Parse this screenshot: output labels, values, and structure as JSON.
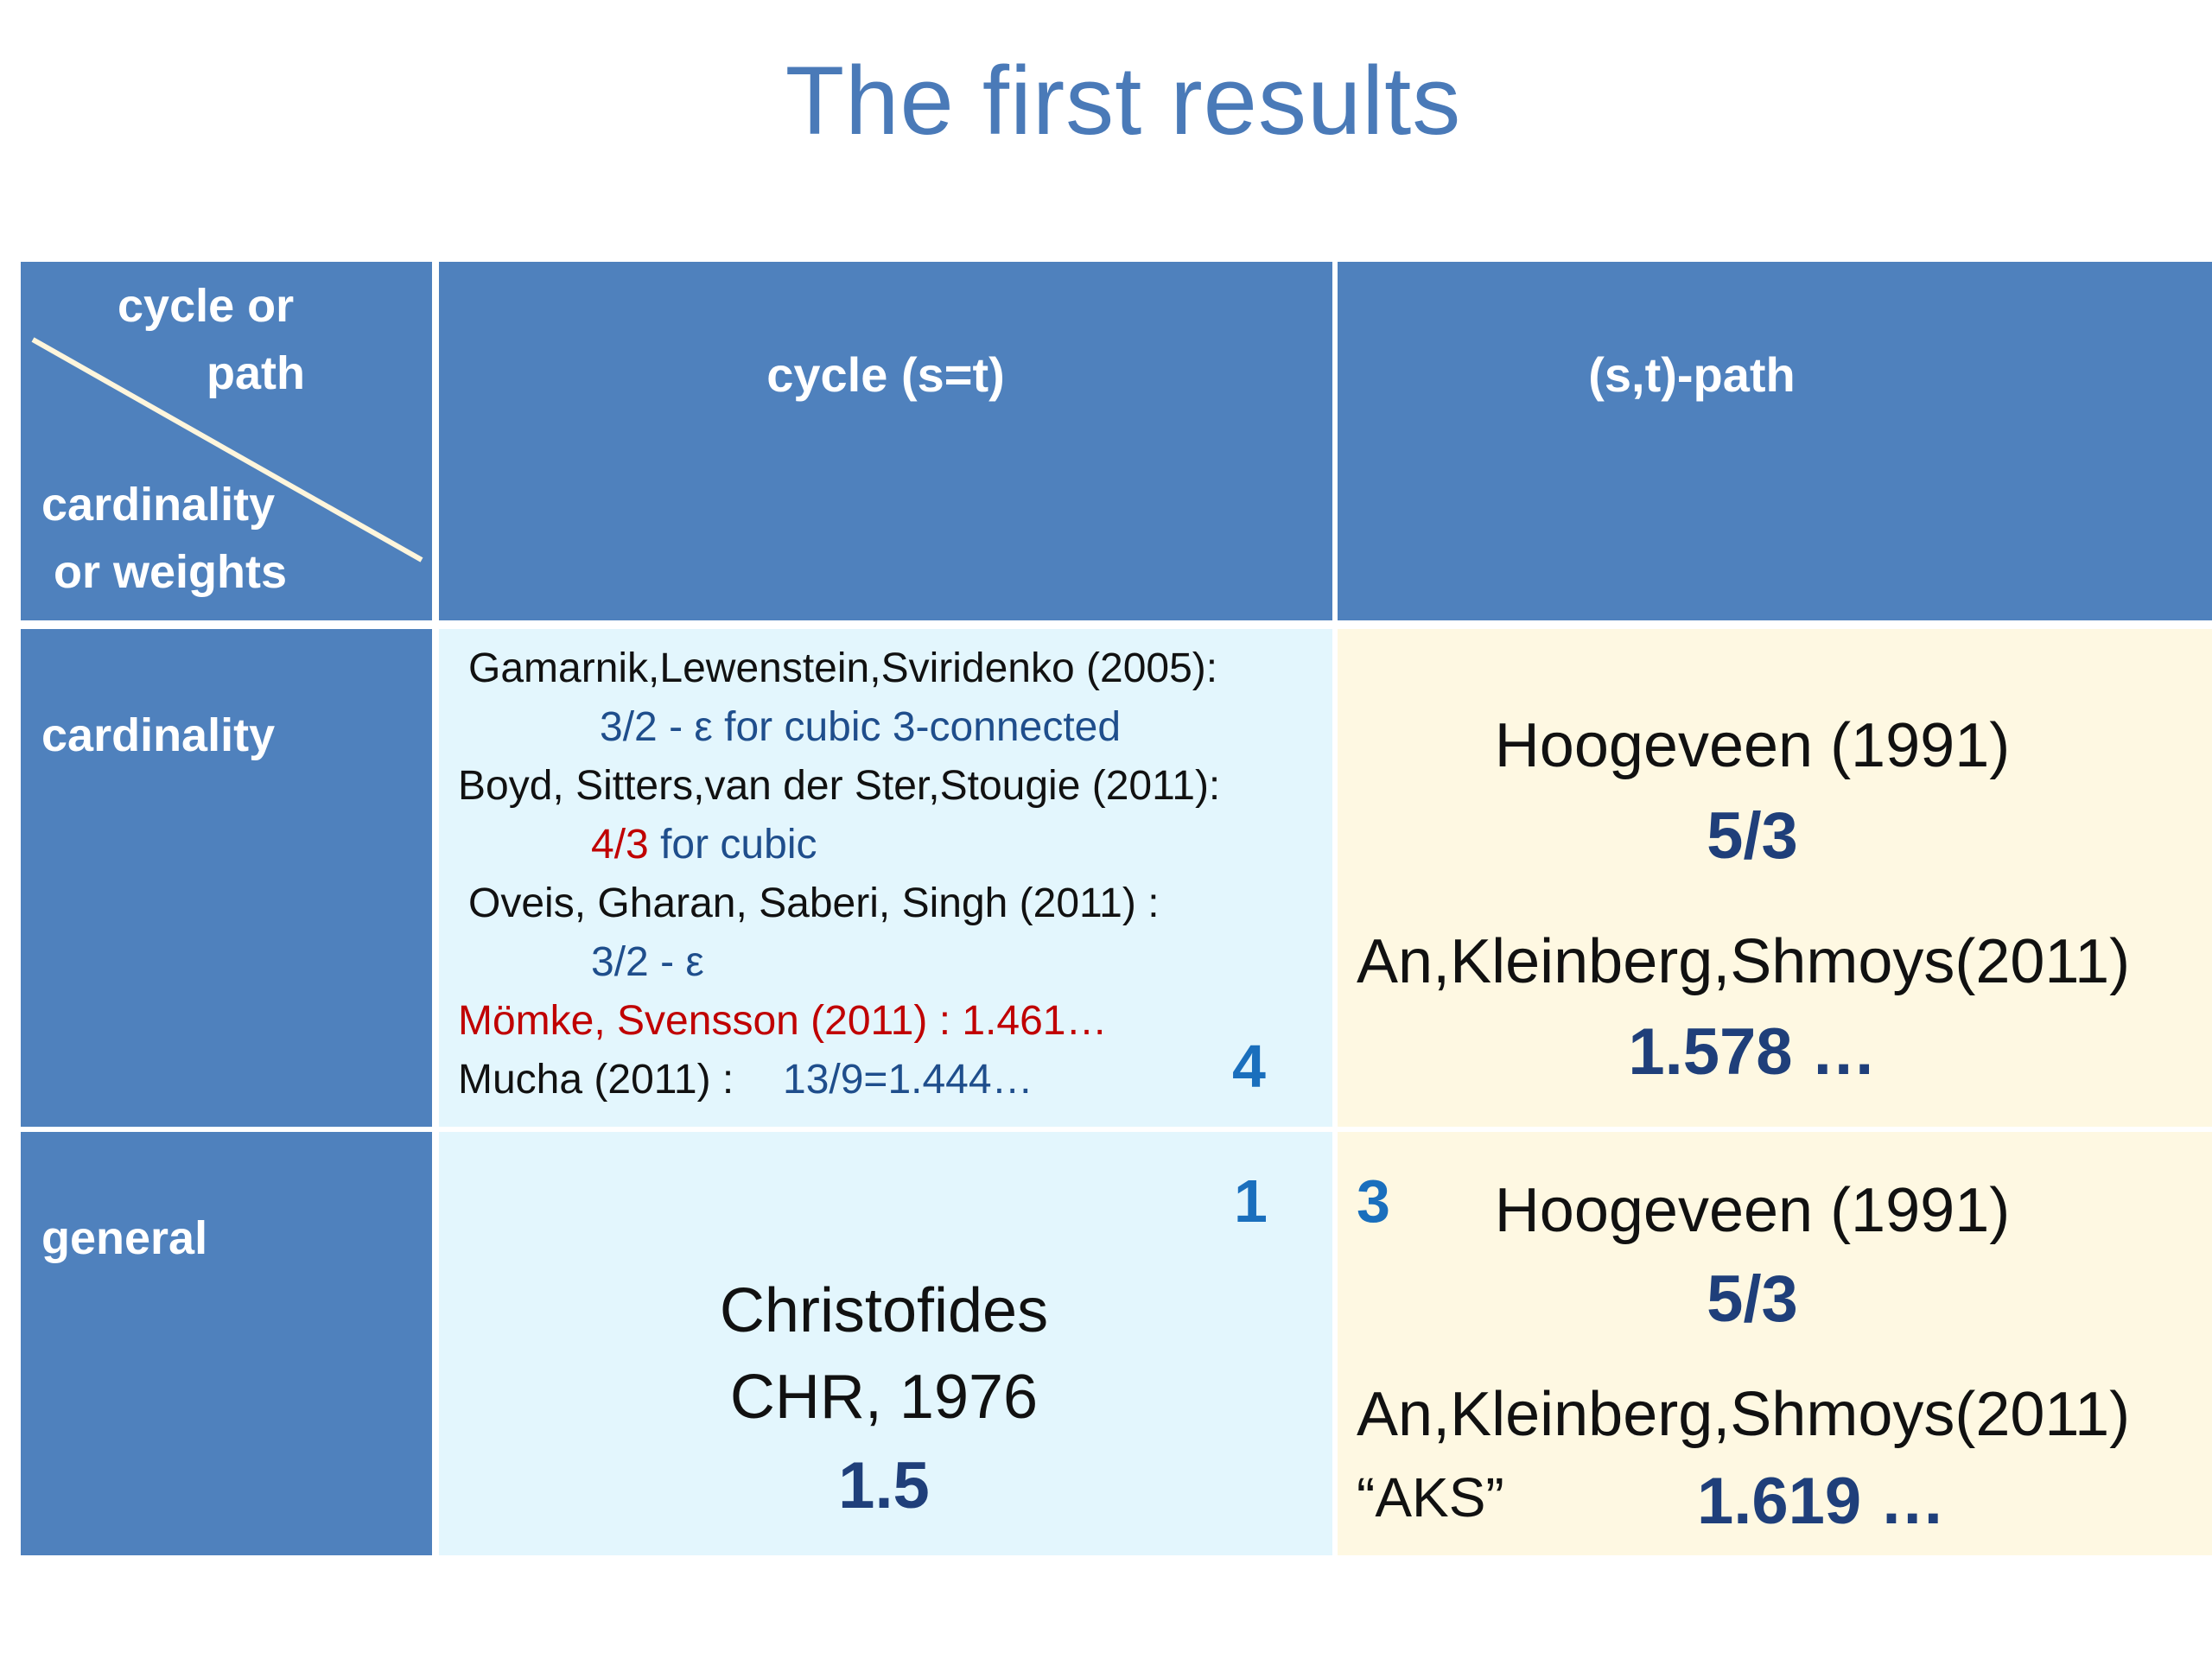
{
  "title": "The first results",
  "header": {
    "corner_top_line1": "cycle or",
    "corner_top_line2": "path",
    "corner_bottom_line1": "cardinality",
    "corner_bottom_line2": "or  weights",
    "col_cycle": "cycle (s=t)",
    "col_path": "(s,t)-path"
  },
  "rows": {
    "cardinality_label": "cardinality",
    "general_label": "general"
  },
  "cardinality_cycle": {
    "ref1": "Gamarnik,Lewenstein,Sviridenko (2005):",
    "ref1_result": "3/2 - ε for cubic 3-connected",
    "ref2": "Boyd, Sitters,van der Ster,Stougie (2011):",
    "ref2_value": "4/3",
    "ref2_suffix": " for cubic",
    "ref3": "Oveis, Gharan, Saberi, Singh (2011) :",
    "ref3_result": "3/2 - ε",
    "ref4": "Mömke, Svensson (2011) : 1.461…",
    "ref5": "Mucha (2011) :",
    "ref5_result": "13/9=1.444…",
    "badge": "4"
  },
  "cardinality_path": {
    "ref1": "Hoogeveen (1991)",
    "val1": "5/3",
    "ref2": "An,Kleinberg,Shmoys(2011)",
    "val2": "1.578 …"
  },
  "general_cycle": {
    "badge": "1",
    "line1": "Christofides",
    "line2": "CHR, 1976",
    "value": "1.5"
  },
  "general_path": {
    "badge": "3",
    "ref1": "Hoogeveen (1991)",
    "val1": "5/3",
    "ref2": "An,Kleinberg,Shmoys(2011)",
    "alias": "“AKS”",
    "val2": "1.619 …"
  },
  "colors": {
    "title": "#4a7ab8",
    "header_blue": "#4f81bd",
    "light_blue": "#e3f6fd",
    "cream": "#fef8e2",
    "red": "#c00000"
  }
}
